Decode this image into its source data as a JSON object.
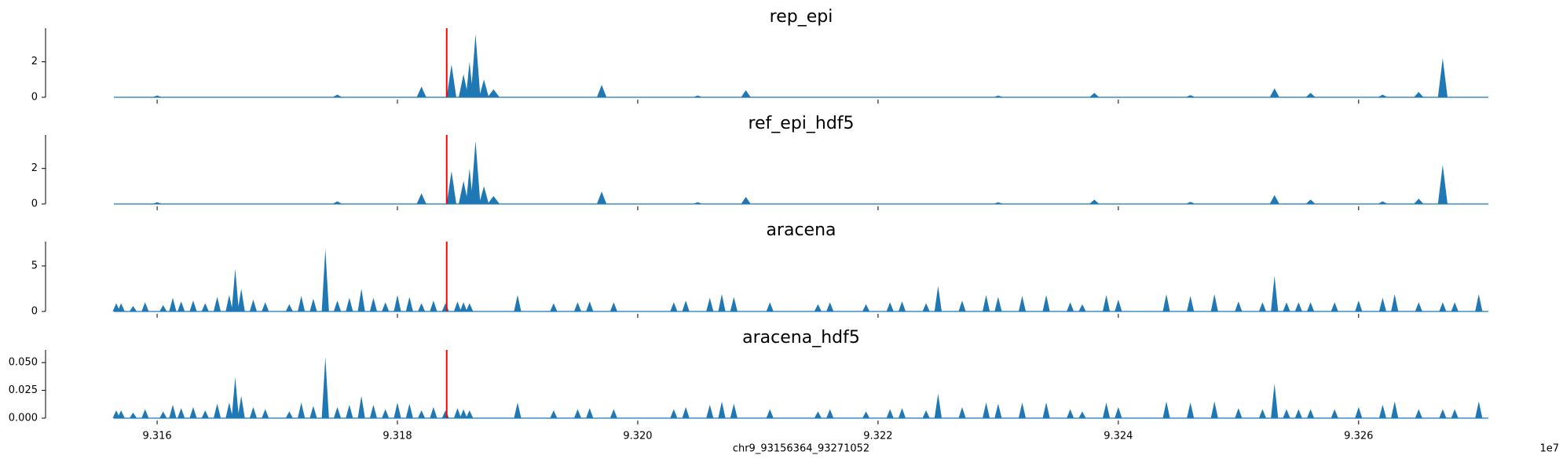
{
  "chart_data": {
    "type": "area",
    "grid": false,
    "legend": "none",
    "x_label": "chr9_93156364_93271052",
    "x_offset_label": "1e7",
    "x_range": [
      9.31564,
      9.32708
    ],
    "x_ticks": [
      9.316,
      9.318,
      9.32,
      9.322,
      9.324,
      9.326
    ],
    "x_tick_labels": [
      "9.316",
      "9.318",
      "9.320",
      "9.322",
      "9.324",
      "9.326"
    ],
    "marker_x": 9.31841,
    "colors": {
      "fill": "#1f77b4",
      "marker": "#ff0000",
      "axis": "#000000"
    },
    "panels": [
      {
        "title": "rep_epi",
        "ylim": [
          0,
          3.8
        ],
        "y_ticks": [
          0,
          2
        ],
        "y_tick_labels": [
          "0",
          "2"
        ],
        "peaks": [
          [
            9.31845,
            1.85,
            4e-05
          ],
          [
            9.31855,
            1.3,
            4e-05
          ],
          [
            9.3186,
            2.0,
            3e-05
          ],
          [
            9.31865,
            3.55,
            4e-05
          ],
          [
            9.31872,
            1.0,
            4e-05
          ],
          [
            9.3188,
            0.45,
            5e-05
          ],
          [
            9.3182,
            0.6,
            4e-05
          ],
          [
            9.3197,
            0.7,
            4e-05
          ],
          [
            9.3209,
            0.4,
            4e-05
          ],
          [
            9.3253,
            0.5,
            4e-05
          ],
          [
            9.3267,
            2.2,
            4e-05
          ],
          [
            9.3265,
            0.3,
            4e-05
          ],
          [
            9.3238,
            0.25,
            4e-05
          ],
          [
            9.3256,
            0.25,
            4e-05
          ],
          [
            9.316,
            0.1,
            4e-05
          ],
          [
            9.3175,
            0.15,
            4e-05
          ],
          [
            9.3205,
            0.1,
            4e-05
          ],
          [
            9.323,
            0.1,
            4e-05
          ],
          [
            9.3246,
            0.12,
            4e-05
          ],
          [
            9.3262,
            0.15,
            4e-05
          ]
        ]
      },
      {
        "title": "ref_epi_hdf5",
        "ylim": [
          0,
          3.8
        ],
        "y_ticks": [
          0,
          2
        ],
        "y_tick_labels": [
          "0",
          "2"
        ],
        "peaks": [
          [
            9.31845,
            1.85,
            4e-05
          ],
          [
            9.31855,
            1.3,
            4e-05
          ],
          [
            9.3186,
            2.0,
            3e-05
          ],
          [
            9.31865,
            3.55,
            4e-05
          ],
          [
            9.31872,
            1.0,
            4e-05
          ],
          [
            9.3188,
            0.45,
            5e-05
          ],
          [
            9.3182,
            0.6,
            4e-05
          ],
          [
            9.3197,
            0.7,
            4e-05
          ],
          [
            9.3209,
            0.4,
            4e-05
          ],
          [
            9.3253,
            0.5,
            4e-05
          ],
          [
            9.3267,
            2.2,
            4e-05
          ],
          [
            9.3265,
            0.3,
            4e-05
          ],
          [
            9.3238,
            0.25,
            4e-05
          ],
          [
            9.3256,
            0.25,
            4e-05
          ],
          [
            9.316,
            0.1,
            4e-05
          ],
          [
            9.3175,
            0.15,
            4e-05
          ],
          [
            9.3205,
            0.1,
            4e-05
          ],
          [
            9.323,
            0.1,
            4e-05
          ],
          [
            9.3246,
            0.12,
            4e-05
          ],
          [
            9.3262,
            0.15,
            4e-05
          ]
        ]
      },
      {
        "title": "aracena",
        "ylim": [
          0,
          7.5
        ],
        "y_ticks": [
          0,
          5
        ],
        "y_tick_labels": [
          "0",
          "5"
        ],
        "peaks": [
          [
            9.31566,
            0.9,
            3e-05
          ],
          [
            9.3157,
            0.9,
            3e-05
          ],
          [
            9.3158,
            0.6,
            3e-05
          ],
          [
            9.3159,
            1.0,
            3e-05
          ],
          [
            9.31605,
            0.7,
            3e-05
          ],
          [
            9.31613,
            1.5,
            3e-05
          ],
          [
            9.3162,
            1.1,
            3e-05
          ],
          [
            9.3163,
            1.2,
            3e-05
          ],
          [
            9.3164,
            0.9,
            3e-05
          ],
          [
            9.3165,
            1.6,
            3e-05
          ],
          [
            9.3166,
            1.8,
            3e-05
          ],
          [
            9.31665,
            4.7,
            3e-05
          ],
          [
            9.3167,
            2.5,
            3e-05
          ],
          [
            9.3168,
            1.3,
            3e-05
          ],
          [
            9.3169,
            1.0,
            3e-05
          ],
          [
            9.3171,
            0.8,
            3e-05
          ],
          [
            9.3172,
            1.7,
            3e-05
          ],
          [
            9.3173,
            1.4,
            3e-05
          ],
          [
            9.3174,
            6.9,
            3e-05
          ],
          [
            9.3175,
            1.2,
            3e-05
          ],
          [
            9.3176,
            1.5,
            3e-05
          ],
          [
            9.3177,
            2.5,
            3e-05
          ],
          [
            9.3178,
            1.5,
            3e-05
          ],
          [
            9.3179,
            1.0,
            3e-05
          ],
          [
            9.318,
            1.8,
            3e-05
          ],
          [
            9.3181,
            1.6,
            3e-05
          ],
          [
            9.3182,
            0.9,
            3e-05
          ],
          [
            9.3183,
            1.2,
            3e-05
          ],
          [
            9.3184,
            0.9,
            3e-05
          ],
          [
            9.31855,
            1.0,
            3e-05
          ],
          [
            9.3176,
            0.8,
            3e-05
          ],
          [
            9.3177,
            1.0,
            3e-05
          ],
          [
            9.3185,
            1.1,
            3e-05
          ],
          [
            9.3186,
            0.9,
            3e-05
          ],
          [
            9.319,
            1.8,
            3e-05
          ],
          [
            9.3193,
            0.9,
            3e-05
          ],
          [
            9.3195,
            1.0,
            3e-05
          ],
          [
            9.3196,
            1.1,
            3e-05
          ],
          [
            9.3198,
            1.0,
            3e-05
          ],
          [
            9.3203,
            1.0,
            3e-05
          ],
          [
            9.3204,
            1.2,
            3e-05
          ],
          [
            9.3206,
            1.5,
            3e-05
          ],
          [
            9.3207,
            1.9,
            3e-05
          ],
          [
            9.3208,
            1.6,
            3e-05
          ],
          [
            9.3211,
            1.0,
            3e-05
          ],
          [
            9.3215,
            0.8,
            3e-05
          ],
          [
            9.3216,
            1.0,
            3e-05
          ],
          [
            9.3219,
            0.8,
            3e-05
          ],
          [
            9.3221,
            1.0,
            3e-05
          ],
          [
            9.3222,
            1.1,
            3e-05
          ],
          [
            9.3224,
            0.9,
            3e-05
          ],
          [
            9.3225,
            2.8,
            3e-05
          ],
          [
            9.3227,
            1.2,
            3e-05
          ],
          [
            9.3229,
            1.8,
            3e-05
          ],
          [
            9.323,
            1.6,
            3e-05
          ],
          [
            9.3232,
            1.7,
            3e-05
          ],
          [
            9.3234,
            1.8,
            3e-05
          ],
          [
            9.3236,
            1.0,
            3e-05
          ],
          [
            9.3237,
            0.8,
            3e-05
          ],
          [
            9.3239,
            1.8,
            3e-05
          ],
          [
            9.324,
            1.3,
            3e-05
          ],
          [
            9.3244,
            1.9,
            3e-05
          ],
          [
            9.3246,
            1.7,
            3e-05
          ],
          [
            9.3248,
            1.9,
            3e-05
          ],
          [
            9.325,
            1.1,
            3e-05
          ],
          [
            9.3252,
            1.0,
            3e-05
          ],
          [
            9.3253,
            3.9,
            3e-05
          ],
          [
            9.3254,
            1.0,
            3e-05
          ],
          [
            9.3255,
            1.0,
            3e-05
          ],
          [
            9.3256,
            1.0,
            3e-05
          ],
          [
            9.3258,
            1.0,
            3e-05
          ],
          [
            9.326,
            1.2,
            3e-05
          ],
          [
            9.3262,
            1.5,
            3e-05
          ],
          [
            9.3263,
            1.9,
            3e-05
          ],
          [
            9.3265,
            1.0,
            3e-05
          ],
          [
            9.3267,
            1.0,
            3e-05
          ],
          [
            9.3268,
            1.0,
            3e-05
          ],
          [
            9.327,
            1.9,
            3e-05
          ]
        ]
      },
      {
        "title": "aracena_hdf5",
        "ylim": [
          0,
          0.06
        ],
        "y_ticks": [
          0,
          0.025,
          0.05
        ],
        "y_tick_labels": [
          "0.000",
          "0.025",
          "0.050"
        ],
        "peaks": [
          [
            9.31566,
            0.007,
            3e-05
          ],
          [
            9.3157,
            0.007,
            3e-05
          ],
          [
            9.3158,
            0.005,
            3e-05
          ],
          [
            9.3159,
            0.008,
            3e-05
          ],
          [
            9.31605,
            0.006,
            3e-05
          ],
          [
            9.31613,
            0.012,
            3e-05
          ],
          [
            9.3162,
            0.009,
            3e-05
          ],
          [
            9.3163,
            0.01,
            3e-05
          ],
          [
            9.3164,
            0.007,
            3e-05
          ],
          [
            9.3165,
            0.013,
            3e-05
          ],
          [
            9.3166,
            0.014,
            3e-05
          ],
          [
            9.31665,
            0.037,
            3e-05
          ],
          [
            9.3167,
            0.02,
            3e-05
          ],
          [
            9.3168,
            0.01,
            3e-05
          ],
          [
            9.3169,
            0.008,
            3e-05
          ],
          [
            9.3171,
            0.006,
            3e-05
          ],
          [
            9.3172,
            0.014,
            3e-05
          ],
          [
            9.3173,
            0.011,
            3e-05
          ],
          [
            9.3174,
            0.055,
            3e-05
          ],
          [
            9.3175,
            0.01,
            3e-05
          ],
          [
            9.3176,
            0.012,
            3e-05
          ],
          [
            9.3177,
            0.02,
            3e-05
          ],
          [
            9.3178,
            0.012,
            3e-05
          ],
          [
            9.3179,
            0.008,
            3e-05
          ],
          [
            9.318,
            0.014,
            3e-05
          ],
          [
            9.3181,
            0.013,
            3e-05
          ],
          [
            9.3182,
            0.007,
            3e-05
          ],
          [
            9.3183,
            0.01,
            3e-05
          ],
          [
            9.3184,
            0.007,
            3e-05
          ],
          [
            9.31855,
            0.008,
            3e-05
          ],
          [
            9.3185,
            0.009,
            3e-05
          ],
          [
            9.3186,
            0.007,
            3e-05
          ],
          [
            9.319,
            0.014,
            3e-05
          ],
          [
            9.3193,
            0.007,
            3e-05
          ],
          [
            9.3195,
            0.008,
            3e-05
          ],
          [
            9.3196,
            0.009,
            3e-05
          ],
          [
            9.3198,
            0.008,
            3e-05
          ],
          [
            9.3203,
            0.008,
            3e-05
          ],
          [
            9.3204,
            0.01,
            3e-05
          ],
          [
            9.3206,
            0.012,
            3e-05
          ],
          [
            9.3207,
            0.015,
            3e-05
          ],
          [
            9.3208,
            0.013,
            3e-05
          ],
          [
            9.3211,
            0.008,
            3e-05
          ],
          [
            9.3215,
            0.006,
            3e-05
          ],
          [
            9.3216,
            0.008,
            3e-05
          ],
          [
            9.3219,
            0.006,
            3e-05
          ],
          [
            9.3221,
            0.008,
            3e-05
          ],
          [
            9.3222,
            0.009,
            3e-05
          ],
          [
            9.3224,
            0.007,
            3e-05
          ],
          [
            9.3225,
            0.022,
            3e-05
          ],
          [
            9.3227,
            0.01,
            3e-05
          ],
          [
            9.3229,
            0.014,
            3e-05
          ],
          [
            9.323,
            0.013,
            3e-05
          ],
          [
            9.3232,
            0.014,
            3e-05
          ],
          [
            9.3234,
            0.014,
            3e-05
          ],
          [
            9.3236,
            0.008,
            3e-05
          ],
          [
            9.3237,
            0.006,
            3e-05
          ],
          [
            9.3239,
            0.014,
            3e-05
          ],
          [
            9.324,
            0.01,
            3e-05
          ],
          [
            9.3244,
            0.015,
            3e-05
          ],
          [
            9.3246,
            0.014,
            3e-05
          ],
          [
            9.3248,
            0.015,
            3e-05
          ],
          [
            9.325,
            0.009,
            3e-05
          ],
          [
            9.3252,
            0.008,
            3e-05
          ],
          [
            9.3253,
            0.031,
            3e-05
          ],
          [
            9.3254,
            0.008,
            3e-05
          ],
          [
            9.3255,
            0.008,
            3e-05
          ],
          [
            9.3256,
            0.008,
            3e-05
          ],
          [
            9.3258,
            0.008,
            3e-05
          ],
          [
            9.326,
            0.01,
            3e-05
          ],
          [
            9.3262,
            0.012,
            3e-05
          ],
          [
            9.3263,
            0.015,
            3e-05
          ],
          [
            9.3265,
            0.008,
            3e-05
          ],
          [
            9.3267,
            0.008,
            3e-05
          ],
          [
            9.3268,
            0.008,
            3e-05
          ],
          [
            9.327,
            0.015,
            3e-05
          ]
        ]
      }
    ]
  }
}
